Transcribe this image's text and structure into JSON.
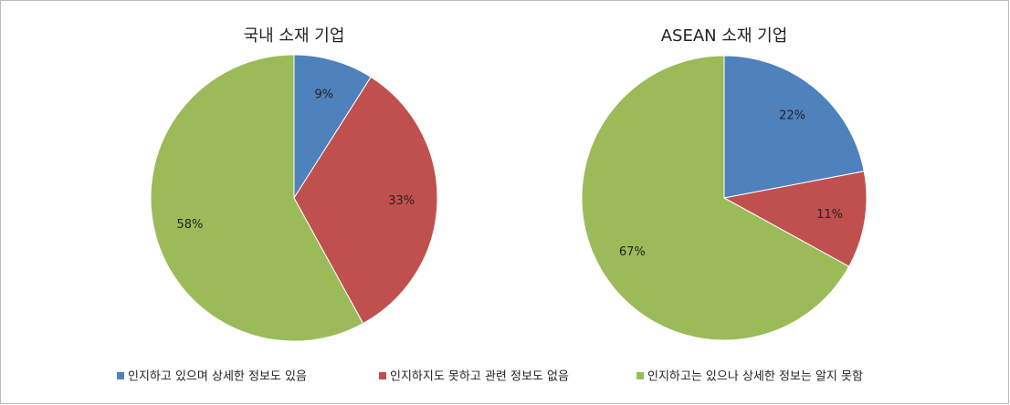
{
  "chart_data": [
    {
      "type": "pie",
      "title": "국내 소재 기업",
      "values": [
        9,
        33,
        58
      ],
      "value_labels": [
        "9%",
        "33%",
        "58%"
      ]
    },
    {
      "type": "pie",
      "title": "ASEAN 소재 기업",
      "values": [
        22,
        11,
        67
      ],
      "value_labels": [
        "22%",
        "11%",
        "67%"
      ]
    }
  ],
  "legend": {
    "items": [
      "인지하고 있으며 상세한 정보도 있음",
      "인지하지도 못하고 관련 정보도 없음",
      "인지하고는 있으나 상세한 정보는 알지 못함"
    ],
    "colors": [
      "#4f81bd",
      "#c0504d",
      "#9bbb59"
    ]
  }
}
